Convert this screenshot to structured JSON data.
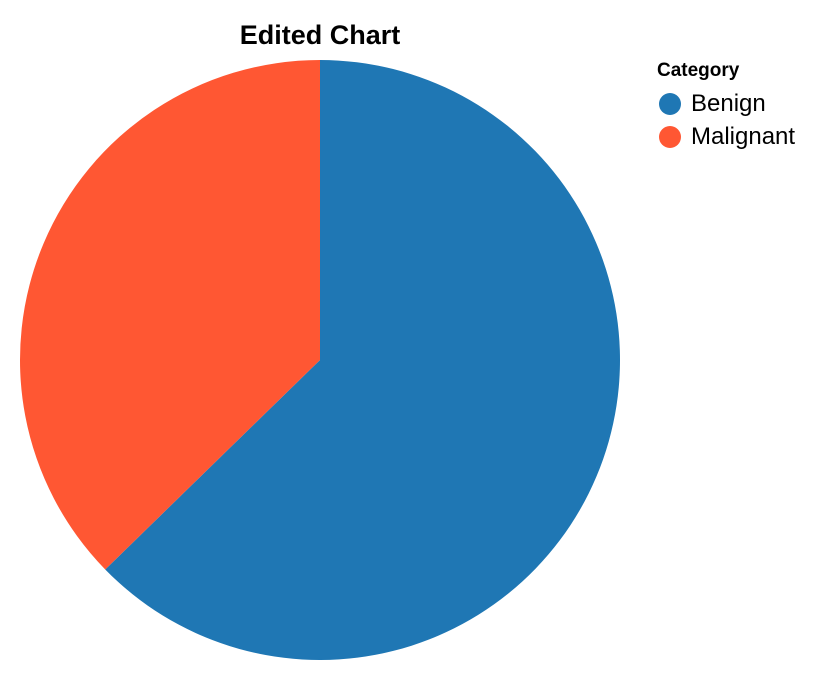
{
  "chart_data": {
    "type": "pie",
    "title": "Edited Chart",
    "categories": [
      "Benign",
      "Malignant"
    ],
    "values": [
      62.7,
      37.3
    ],
    "colors": [
      "#1f77b4",
      "#ff5733"
    ],
    "start_angle_deg": 0,
    "direction": "clockwise",
    "legend": {
      "title": "Category",
      "placement": "top-right"
    }
  }
}
